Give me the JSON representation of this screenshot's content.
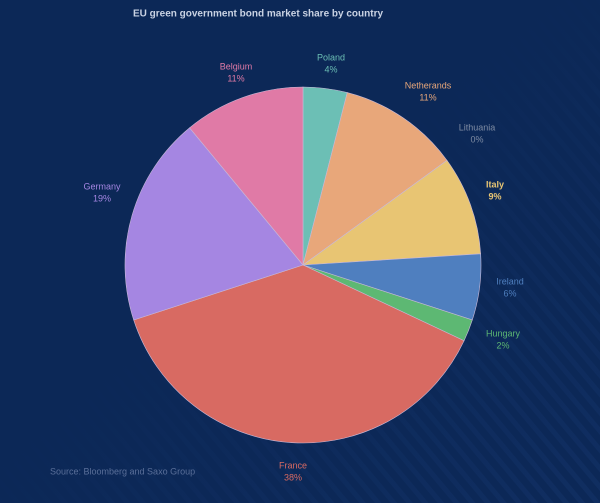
{
  "chart_data": {
    "type": "pie",
    "title": "EU green government bond market share by country",
    "source": "Source: Bloomberg and Saxo Group",
    "categories": [
      "Poland",
      "Netherands",
      "Lithuania",
      "Italy",
      "Ireland",
      "Hungary",
      "France",
      "Germany",
      "Belgium"
    ],
    "values": [
      4,
      11,
      0,
      9,
      6,
      2,
      38,
      19,
      11
    ],
    "value_labels": [
      "4%",
      "11%",
      "0%",
      "9%",
      "6%",
      "2%",
      "38%",
      "19%",
      "11%"
    ],
    "colors": [
      "#6cbfb5",
      "#e8a77a",
      "#7f8ca3",
      "#e8c573",
      "#4f7fbf",
      "#5db873",
      "#d86a62",
      "#a586e2",
      "#e07aa6"
    ]
  }
}
